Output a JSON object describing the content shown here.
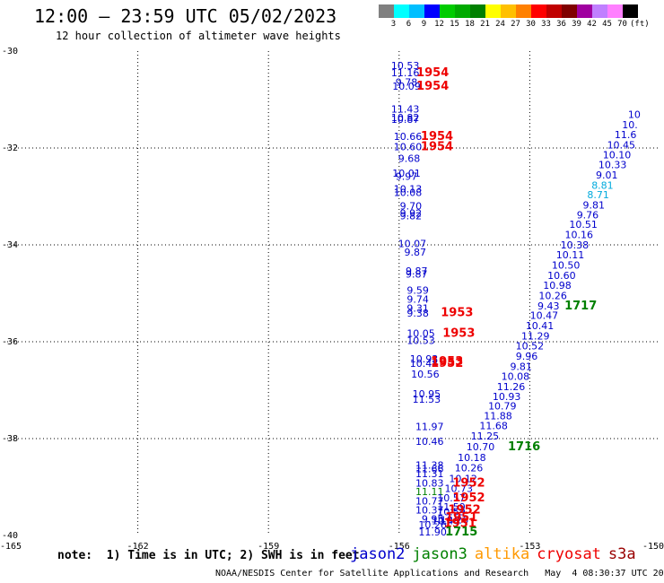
{
  "header": {
    "title": "12:00 – 23:59 UTC 05/02/2023",
    "subtitle": "12 hour collection of altimeter wave heights"
  },
  "legend": {
    "colors": [
      "#808080",
      "#00ffff",
      "#00bfff",
      "#0000ff",
      "#00cc00",
      "#00aa00",
      "#008000",
      "#ffff00",
      "#ffc000",
      "#ff8000",
      "#ff0000",
      "#c00000",
      "#800000",
      "#a000a0",
      "#c080ff",
      "#ff80ff",
      "#000000"
    ],
    "labels": [
      "3",
      "6",
      "9",
      "12",
      "15",
      "18",
      "21",
      "24",
      "27",
      "30",
      "33",
      "36",
      "39",
      "42",
      "45",
      "70",
      "(ft)"
    ]
  },
  "note": "note:  1) Time is in UTC; 2) SWH is in feet",
  "satellites": [
    {
      "name": "jason2",
      "color": "#0000cc"
    },
    {
      "name": "jason3",
      "color": "#008000"
    },
    {
      "name": "altika",
      "color": "#ff9900"
    },
    {
      "name": "cryosat",
      "color": "#ee0000"
    },
    {
      "name": "s3a",
      "color": "#990000"
    }
  ],
  "footer": "NOAA/NESDIS Center for Satellite Applications and Research   May  4 08:30:37 UTC 2023",
  "chart_data": {
    "type": "scatter",
    "title": "12:00 – 23:59 UTC 05/02/2023",
    "subtitle": "12 hour collection of altimeter wave heights",
    "xlim": [
      -165,
      -150
    ],
    "ylim": [
      -40,
      -30
    ],
    "x_ticks": [
      "-165",
      "-162",
      "-159",
      "-156",
      "-153",
      "-150"
    ],
    "y_ticks": [
      "-30",
      "-32",
      "-34",
      "-36",
      "-38",
      "-40"
    ],
    "grid": true,
    "wave_heights": [
      {
        "x": -155.86,
        "y": -30.37,
        "v": "10.53",
        "c": "#0000cc"
      },
      {
        "x": -155.86,
        "y": -30.52,
        "v": "11.16",
        "c": "#0000cc"
      },
      {
        "x": -155.83,
        "y": -30.71,
        "v": "9.78",
        "c": "#0000cc"
      },
      {
        "x": -155.83,
        "y": -30.8,
        "v": "10.09",
        "c": "#0000cc"
      },
      {
        "x": -155.86,
        "y": -31.27,
        "v": "11.43",
        "c": "#0000cc"
      },
      {
        "x": -155.86,
        "y": -31.44,
        "v": "10.82",
        "c": "#0000cc"
      },
      {
        "x": -155.86,
        "y": -31.48,
        "v": "10.87",
        "c": "#0000cc"
      },
      {
        "x": -155.8,
        "y": -31.83,
        "v": "10.66",
        "c": "#0000cc"
      },
      {
        "x": -155.8,
        "y": -32.05,
        "v": "10.60",
        "c": "#0000cc"
      },
      {
        "x": -155.77,
        "y": -32.29,
        "v": "9.68",
        "c": "#0000cc"
      },
      {
        "x": -155.83,
        "y": -32.59,
        "v": "10.01",
        "c": "#0000cc"
      },
      {
        "x": -155.83,
        "y": -32.66,
        "v": "9.97",
        "c": "#0000cc"
      },
      {
        "x": -155.8,
        "y": -32.92,
        "v": "10.13",
        "c": "#0000cc"
      },
      {
        "x": -155.8,
        "y": -32.99,
        "v": "10.08",
        "c": "#0000cc"
      },
      {
        "x": -155.73,
        "y": -33.27,
        "v": "9.70",
        "c": "#0000cc"
      },
      {
        "x": -155.73,
        "y": -33.42,
        "v": "9.92",
        "c": "#0000cc"
      },
      {
        "x": -155.73,
        "y": -33.47,
        "v": "9.82",
        "c": "#0000cc"
      },
      {
        "x": -155.7,
        "y": -34.05,
        "v": "10.07",
        "c": "#0000cc"
      },
      {
        "x": -155.63,
        "y": -34.22,
        "v": "9.87",
        "c": "#0000cc"
      },
      {
        "x": -155.6,
        "y": -34.61,
        "v": "9.87",
        "c": "#0000cc"
      },
      {
        "x": -155.6,
        "y": -34.68,
        "v": "9.87",
        "c": "#0000cc"
      },
      {
        "x": -155.57,
        "y": -35.01,
        "v": "9.59",
        "c": "#0000cc"
      },
      {
        "x": -155.57,
        "y": -35.19,
        "v": "9.74",
        "c": "#0000cc"
      },
      {
        "x": -155.57,
        "y": -35.38,
        "v": "9.31",
        "c": "#0000cc"
      },
      {
        "x": -155.57,
        "y": -35.48,
        "v": "9.38",
        "c": "#0000cc"
      },
      {
        "x": -155.5,
        "y": -35.9,
        "v": "10.05",
        "c": "#0000cc"
      },
      {
        "x": -155.5,
        "y": -36.05,
        "v": "10.53",
        "c": "#0000cc"
      },
      {
        "x": -155.43,
        "y": -36.43,
        "v": "10.93",
        "c": "#0000cc"
      },
      {
        "x": -155.43,
        "y": -36.52,
        "v": "10.48",
        "c": "#0000cc"
      },
      {
        "x": -155.4,
        "y": -36.74,
        "v": "10.56",
        "c": "#0000cc"
      },
      {
        "x": -155.37,
        "y": -37.15,
        "v": "10.95",
        "c": "#0000cc"
      },
      {
        "x": -155.37,
        "y": -37.26,
        "v": "11.53",
        "c": "#0000cc"
      },
      {
        "x": -155.3,
        "y": -37.82,
        "v": "11.97",
        "c": "#0000cc"
      },
      {
        "x": -155.3,
        "y": -38.13,
        "v": "10.46",
        "c": "#0000cc"
      },
      {
        "x": -155.3,
        "y": -38.62,
        "v": "11.38",
        "c": "#0000cc"
      },
      {
        "x": -155.3,
        "y": -38.69,
        "v": "11.66",
        "c": "#0000cc"
      },
      {
        "x": -155.3,
        "y": -38.8,
        "v": "11.31",
        "c": "#0000cc"
      },
      {
        "x": -155.3,
        "y": -38.99,
        "v": "10.83",
        "c": "#0000cc"
      },
      {
        "x": -155.3,
        "y": -39.17,
        "v": "11.11",
        "c": "#008000"
      },
      {
        "x": -155.3,
        "y": -39.36,
        "v": "10.77",
        "c": "#0000cc"
      },
      {
        "x": -155.3,
        "y": -39.55,
        "v": "10.37",
        "c": "#0000cc"
      },
      {
        "x": -155.23,
        "y": -39.73,
        "v": "9.95",
        "c": "#0000cc"
      },
      {
        "x": -155.23,
        "y": -39.85,
        "v": "10.26",
        "c": "#0000cc"
      },
      {
        "x": -154.93,
        "y": -39.77,
        "v": "10.48",
        "c": "#0000cc"
      },
      {
        "x": -154.73,
        "y": -39.75,
        "v": "10.26",
        "c": "#0000cc"
      },
      {
        "x": -154.8,
        "y": -39.58,
        "v": "10.59",
        "c": "#0000cc"
      },
      {
        "x": -154.8,
        "y": -39.48,
        "v": "11.59",
        "c": "#0000cc"
      },
      {
        "x": -154.8,
        "y": -39.3,
        "v": "10.57",
        "c": "#0000cc"
      },
      {
        "x": -154.63,
        "y": -39.1,
        "v": "10.73",
        "c": "#0000cc"
      },
      {
        "x": -154.53,
        "y": -38.9,
        "v": "10.12",
        "c": "#0000cc"
      },
      {
        "x": -154.4,
        "y": -38.68,
        "v": "10.26",
        "c": "#0000cc"
      },
      {
        "x": -154.33,
        "y": -38.46,
        "v": "10.18",
        "c": "#0000cc"
      },
      {
        "x": -154.13,
        "y": -38.24,
        "v": "10.70",
        "c": "#0000cc"
      },
      {
        "x": -154.03,
        "y": -38.02,
        "v": "11.25",
        "c": "#0000cc"
      },
      {
        "x": -153.83,
        "y": -37.81,
        "v": "11.68",
        "c": "#0000cc"
      },
      {
        "x": -153.73,
        "y": -37.6,
        "v": "11.88",
        "c": "#0000cc"
      },
      {
        "x": -153.63,
        "y": -37.4,
        "v": "10.79",
        "c": "#0000cc"
      },
      {
        "x": -153.53,
        "y": -37.2,
        "v": "10.93",
        "c": "#0000cc"
      },
      {
        "x": -153.43,
        "y": -37.0,
        "v": "11.26",
        "c": "#0000cc"
      },
      {
        "x": -153.33,
        "y": -36.79,
        "v": "10.08",
        "c": "#0000cc"
      },
      {
        "x": -153.2,
        "y": -36.58,
        "v": "9.81",
        "c": "#0000cc"
      },
      {
        "x": -153.07,
        "y": -36.37,
        "v": "9.96",
        "c": "#0000cc"
      },
      {
        "x": -153.0,
        "y": -36.16,
        "v": "10.52",
        "c": "#0000cc"
      },
      {
        "x": -152.87,
        "y": -35.95,
        "v": "11.29",
        "c": "#0000cc"
      },
      {
        "x": -152.77,
        "y": -35.74,
        "v": "10.41",
        "c": "#0000cc"
      },
      {
        "x": -152.67,
        "y": -35.53,
        "v": "10.47",
        "c": "#0000cc"
      },
      {
        "x": -152.57,
        "y": -35.33,
        "v": "9.43",
        "c": "#0000cc"
      },
      {
        "x": -152.47,
        "y": -35.12,
        "v": "10.26",
        "c": "#0000cc"
      },
      {
        "x": -152.37,
        "y": -34.91,
        "v": "10.98",
        "c": "#0000cc"
      },
      {
        "x": -152.27,
        "y": -34.7,
        "v": "10.60",
        "c": "#0000cc"
      },
      {
        "x": -152.17,
        "y": -34.49,
        "v": "10.50",
        "c": "#0000cc"
      },
      {
        "x": -152.07,
        "y": -34.28,
        "v": "10.11",
        "c": "#0000cc"
      },
      {
        "x": -151.97,
        "y": -34.07,
        "v": "10.38",
        "c": "#0000cc"
      },
      {
        "x": -151.87,
        "y": -33.86,
        "v": "10.16",
        "c": "#0000cc"
      },
      {
        "x": -151.77,
        "y": -33.65,
        "v": "10.51",
        "c": "#0000cc"
      },
      {
        "x": -151.67,
        "y": -33.45,
        "v": "9.76",
        "c": "#0000cc"
      },
      {
        "x": -151.53,
        "y": -33.25,
        "v": "9.81",
        "c": "#0000cc"
      },
      {
        "x": -151.43,
        "y": -33.04,
        "v": "8.71",
        "c": "#00aadd"
      },
      {
        "x": -151.33,
        "y": -32.84,
        "v": "8.81",
        "c": "#00aadd"
      },
      {
        "x": -151.23,
        "y": -32.63,
        "v": "9.01",
        "c": "#0000cc"
      },
      {
        "x": -151.1,
        "y": -32.42,
        "v": "10.33",
        "c": "#0000cc"
      },
      {
        "x": -151.0,
        "y": -32.21,
        "v": "10.10",
        "c": "#0000cc"
      },
      {
        "x": -150.9,
        "y": -32.01,
        "v": "10.45",
        "c": "#0000cc"
      },
      {
        "x": -150.8,
        "y": -31.8,
        "v": "11.6",
        "c": "#0000cc"
      },
      {
        "x": -150.7,
        "y": -31.59,
        "v": "10.",
        "c": "#0000cc"
      },
      {
        "x": -150.6,
        "y": -31.38,
        "v": "10",
        "c": "#0000cc"
      }
    ],
    "times": [
      {
        "x": -155.23,
        "y": -30.52,
        "t": "1954",
        "c": "#ee0000"
      },
      {
        "x": -155.23,
        "y": -30.8,
        "t": "1954",
        "c": "#ee0000"
      },
      {
        "x": -155.13,
        "y": -31.83,
        "t": "1954",
        "c": "#ee0000"
      },
      {
        "x": -155.13,
        "y": -32.05,
        "t": "1954",
        "c": "#ee0000"
      },
      {
        "x": -154.67,
        "y": -35.47,
        "t": "1953",
        "c": "#ee0000"
      },
      {
        "x": -154.63,
        "y": -35.9,
        "t": "1953",
        "c": "#ee0000"
      },
      {
        "x": -154.9,
        "y": -36.48,
        "t": "1953",
        "c": "#ee0000"
      },
      {
        "x": -154.9,
        "y": -36.52,
        "t": "1952",
        "c": "#ee0000"
      },
      {
        "x": -154.4,
        "y": -38.99,
        "t": "1952",
        "c": "#ee0000"
      },
      {
        "x": -154.4,
        "y": -39.3,
        "t": "1952",
        "c": "#ee0000"
      },
      {
        "x": -154.5,
        "y": -39.55,
        "t": "1952",
        "c": "#ee0000"
      },
      {
        "x": -154.57,
        "y": -39.7,
        "t": "1951",
        "c": "#ee0000"
      },
      {
        "x": -154.6,
        "y": -39.82,
        "t": "1951",
        "c": "#ee0000"
      },
      {
        "x": -154.57,
        "y": -40.0,
        "t": "1715",
        "c": "#008000"
      },
      {
        "x": -153.13,
        "y": -38.24,
        "t": "1716",
        "c": "#008000"
      },
      {
        "x": -151.83,
        "y": -35.33,
        "t": "1717",
        "c": "#008000"
      }
    ],
    "last_swh": {
      "x": -155.23,
      "y": -40.0,
      "v": "11.90",
      "c": "#0000cc"
    }
  }
}
